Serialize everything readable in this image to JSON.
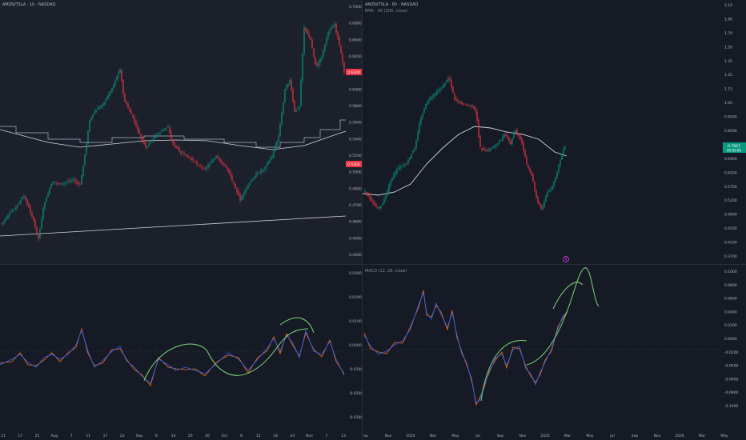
{
  "left": {
    "title": "AMZN/TSLA · 1h · NASDAQ",
    "price_axis": [
      "0.7000",
      "0.6800",
      "0.6600",
      "0.6450",
      "0.6200",
      "0.6000",
      "0.5800",
      "0.5600",
      "0.5400",
      "0.5200",
      "0.5000",
      "0.4800",
      "0.4700",
      "0.4600",
      "0.4500",
      "0.4400"
    ],
    "price_badges": [
      {
        "text": "0.6300",
        "color": "#f23645"
      },
      {
        "text": "0.5300",
        "color": "#f23645"
      }
    ],
    "macd_axis": [
      "0.0300",
      "0.0200",
      "0.0100",
      "0.0000",
      "-0.0100",
      "-0.0200",
      "-0.0300"
    ],
    "time_axis": [
      "11",
      "17",
      "21",
      "Aug",
      "7",
      "11",
      "17",
      "23",
      "Sep",
      "9",
      "14",
      "20",
      "26",
      "Oct",
      "6",
      "12",
      "18",
      "24",
      "Nov",
      "7",
      "13"
    ]
  },
  "right": {
    "title": "AMZN/TSLA · 8h · NASDAQ",
    "indicator": "EMA · 20 (200, close)",
    "macd_label": "MACD (12, 26, close)",
    "price_axis": [
      "2.10",
      "1.90",
      "1.70",
      "1.50",
      "1.35",
      "1.25",
      "1.15",
      "1.05",
      "0.9500",
      "0.8500",
      "0.7950",
      "0.6900",
      "0.6200",
      "0.5700",
      "0.5200",
      "0.4900",
      "0.4500",
      "0.4100",
      "0.3700"
    ],
    "price_badge": {
      "text": "0.7667",
      "sub": "00:05:06",
      "color": "#089981"
    },
    "marker": "8",
    "macd_axis": [
      "0.1000",
      "0.0800",
      "0.0600",
      "0.0400",
      "0.0200",
      "0.0000",
      "-0.0200",
      "-0.0400",
      "-0.0600",
      "-0.0800",
      "-0.1000"
    ],
    "time_axis": [
      "ep",
      "Nov",
      "2024",
      "Mar",
      "May",
      "Jul",
      "Sep",
      "Nov",
      "2025",
      "Mar",
      "May",
      "Jul",
      "Sep",
      "Nov",
      "2026",
      "Mar",
      "May"
    ]
  },
  "colors": {
    "up": "#089981",
    "down": "#f23645",
    "macd": "#2962ff",
    "signal": "#ff6d00",
    "drawing": "#7bd67a",
    "ema": "#d1d4dc"
  }
}
